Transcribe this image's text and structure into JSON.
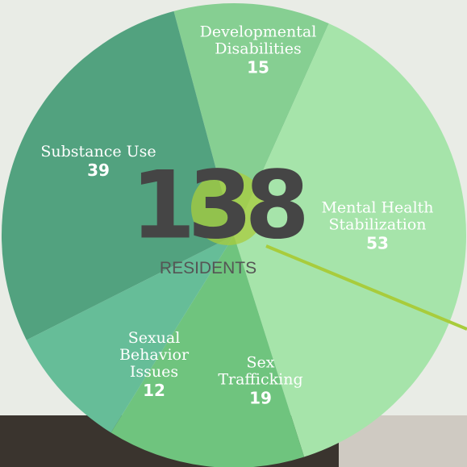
{
  "chart_data": {
    "type": "pie",
    "categories": [
      "Developmental Disabilities",
      "Mental Health Stabilization",
      "Sex Trafficking",
      "Sexual Behavior Issues",
      "Substance Use"
    ],
    "values": [
      15,
      53,
      19,
      12,
      39
    ],
    "colors": [
      "#86cf92",
      "#a6e4aa",
      "#6fc47e",
      "#66bd98",
      "#52a27f"
    ],
    "total": 138,
    "total_label": "RESIDENTS"
  }
}
